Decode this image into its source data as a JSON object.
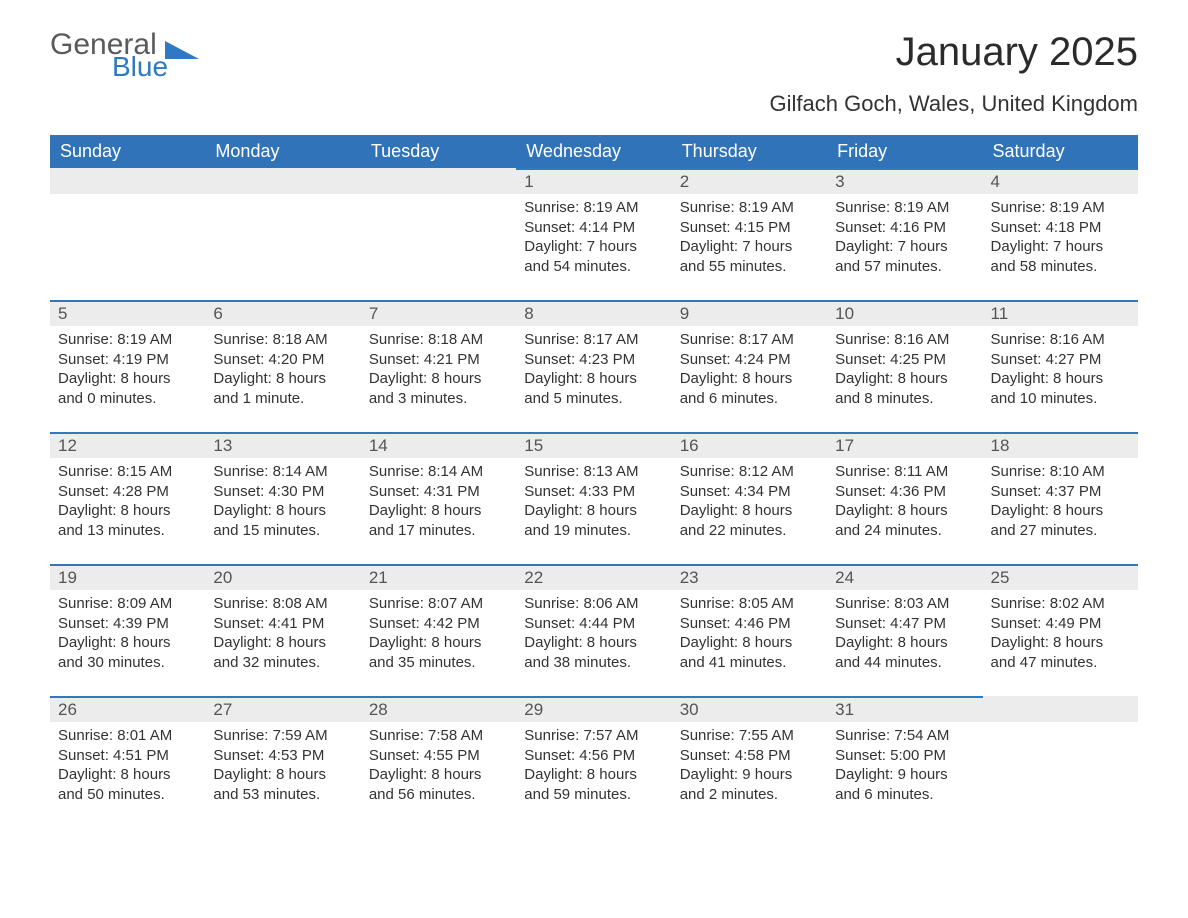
{
  "logo": {
    "word1": "General",
    "word2": "Blue"
  },
  "title": "January 2025",
  "location": "Gilfach Goch, Wales, United Kingdom",
  "colors": {
    "header_bg": "#3173b8",
    "header_text": "#ffffff",
    "row_accent": "#2f78c4",
    "daynum_bg": "#ececec",
    "body_bg": "#ffffff",
    "text": "#333333",
    "logo_gray": "#5a5a5a",
    "logo_blue": "#2f78c4"
  },
  "days_of_week": [
    "Sunday",
    "Monday",
    "Tuesday",
    "Wednesday",
    "Thursday",
    "Friday",
    "Saturday"
  ],
  "weeks": [
    [
      null,
      null,
      null,
      {
        "n": "1",
        "sunrise": "Sunrise: 8:19 AM",
        "sunset": "Sunset: 4:14 PM",
        "day1": "Daylight: 7 hours",
        "day2": "and 54 minutes."
      },
      {
        "n": "2",
        "sunrise": "Sunrise: 8:19 AM",
        "sunset": "Sunset: 4:15 PM",
        "day1": "Daylight: 7 hours",
        "day2": "and 55 minutes."
      },
      {
        "n": "3",
        "sunrise": "Sunrise: 8:19 AM",
        "sunset": "Sunset: 4:16 PM",
        "day1": "Daylight: 7 hours",
        "day2": "and 57 minutes."
      },
      {
        "n": "4",
        "sunrise": "Sunrise: 8:19 AM",
        "sunset": "Sunset: 4:18 PM",
        "day1": "Daylight: 7 hours",
        "day2": "and 58 minutes."
      }
    ],
    [
      {
        "n": "5",
        "sunrise": "Sunrise: 8:19 AM",
        "sunset": "Sunset: 4:19 PM",
        "day1": "Daylight: 8 hours",
        "day2": "and 0 minutes."
      },
      {
        "n": "6",
        "sunrise": "Sunrise: 8:18 AM",
        "sunset": "Sunset: 4:20 PM",
        "day1": "Daylight: 8 hours",
        "day2": "and 1 minute."
      },
      {
        "n": "7",
        "sunrise": "Sunrise: 8:18 AM",
        "sunset": "Sunset: 4:21 PM",
        "day1": "Daylight: 8 hours",
        "day2": "and 3 minutes."
      },
      {
        "n": "8",
        "sunrise": "Sunrise: 8:17 AM",
        "sunset": "Sunset: 4:23 PM",
        "day1": "Daylight: 8 hours",
        "day2": "and 5 minutes."
      },
      {
        "n": "9",
        "sunrise": "Sunrise: 8:17 AM",
        "sunset": "Sunset: 4:24 PM",
        "day1": "Daylight: 8 hours",
        "day2": "and 6 minutes."
      },
      {
        "n": "10",
        "sunrise": "Sunrise: 8:16 AM",
        "sunset": "Sunset: 4:25 PM",
        "day1": "Daylight: 8 hours",
        "day2": "and 8 minutes."
      },
      {
        "n": "11",
        "sunrise": "Sunrise: 8:16 AM",
        "sunset": "Sunset: 4:27 PM",
        "day1": "Daylight: 8 hours",
        "day2": "and 10 minutes."
      }
    ],
    [
      {
        "n": "12",
        "sunrise": "Sunrise: 8:15 AM",
        "sunset": "Sunset: 4:28 PM",
        "day1": "Daylight: 8 hours",
        "day2": "and 13 minutes."
      },
      {
        "n": "13",
        "sunrise": "Sunrise: 8:14 AM",
        "sunset": "Sunset: 4:30 PM",
        "day1": "Daylight: 8 hours",
        "day2": "and 15 minutes."
      },
      {
        "n": "14",
        "sunrise": "Sunrise: 8:14 AM",
        "sunset": "Sunset: 4:31 PM",
        "day1": "Daylight: 8 hours",
        "day2": "and 17 minutes."
      },
      {
        "n": "15",
        "sunrise": "Sunrise: 8:13 AM",
        "sunset": "Sunset: 4:33 PM",
        "day1": "Daylight: 8 hours",
        "day2": "and 19 minutes."
      },
      {
        "n": "16",
        "sunrise": "Sunrise: 8:12 AM",
        "sunset": "Sunset: 4:34 PM",
        "day1": "Daylight: 8 hours",
        "day2": "and 22 minutes."
      },
      {
        "n": "17",
        "sunrise": "Sunrise: 8:11 AM",
        "sunset": "Sunset: 4:36 PM",
        "day1": "Daylight: 8 hours",
        "day2": "and 24 minutes."
      },
      {
        "n": "18",
        "sunrise": "Sunrise: 8:10 AM",
        "sunset": "Sunset: 4:37 PM",
        "day1": "Daylight: 8 hours",
        "day2": "and 27 minutes."
      }
    ],
    [
      {
        "n": "19",
        "sunrise": "Sunrise: 8:09 AM",
        "sunset": "Sunset: 4:39 PM",
        "day1": "Daylight: 8 hours",
        "day2": "and 30 minutes."
      },
      {
        "n": "20",
        "sunrise": "Sunrise: 8:08 AM",
        "sunset": "Sunset: 4:41 PM",
        "day1": "Daylight: 8 hours",
        "day2": "and 32 minutes."
      },
      {
        "n": "21",
        "sunrise": "Sunrise: 8:07 AM",
        "sunset": "Sunset: 4:42 PM",
        "day1": "Daylight: 8 hours",
        "day2": "and 35 minutes."
      },
      {
        "n": "22",
        "sunrise": "Sunrise: 8:06 AM",
        "sunset": "Sunset: 4:44 PM",
        "day1": "Daylight: 8 hours",
        "day2": "and 38 minutes."
      },
      {
        "n": "23",
        "sunrise": "Sunrise: 8:05 AM",
        "sunset": "Sunset: 4:46 PM",
        "day1": "Daylight: 8 hours",
        "day2": "and 41 minutes."
      },
      {
        "n": "24",
        "sunrise": "Sunrise: 8:03 AM",
        "sunset": "Sunset: 4:47 PM",
        "day1": "Daylight: 8 hours",
        "day2": "and 44 minutes."
      },
      {
        "n": "25",
        "sunrise": "Sunrise: 8:02 AM",
        "sunset": "Sunset: 4:49 PM",
        "day1": "Daylight: 8 hours",
        "day2": "and 47 minutes."
      }
    ],
    [
      {
        "n": "26",
        "sunrise": "Sunrise: 8:01 AM",
        "sunset": "Sunset: 4:51 PM",
        "day1": "Daylight: 8 hours",
        "day2": "and 50 minutes."
      },
      {
        "n": "27",
        "sunrise": "Sunrise: 7:59 AM",
        "sunset": "Sunset: 4:53 PM",
        "day1": "Daylight: 8 hours",
        "day2": "and 53 minutes."
      },
      {
        "n": "28",
        "sunrise": "Sunrise: 7:58 AM",
        "sunset": "Sunset: 4:55 PM",
        "day1": "Daylight: 8 hours",
        "day2": "and 56 minutes."
      },
      {
        "n": "29",
        "sunrise": "Sunrise: 7:57 AM",
        "sunset": "Sunset: 4:56 PM",
        "day1": "Daylight: 8 hours",
        "day2": "and 59 minutes."
      },
      {
        "n": "30",
        "sunrise": "Sunrise: 7:55 AM",
        "sunset": "Sunset: 4:58 PM",
        "day1": "Daylight: 9 hours",
        "day2": "and 2 minutes."
      },
      {
        "n": "31",
        "sunrise": "Sunrise: 7:54 AM",
        "sunset": "Sunset: 5:00 PM",
        "day1": "Daylight: 9 hours",
        "day2": "and 6 minutes."
      },
      null
    ]
  ]
}
